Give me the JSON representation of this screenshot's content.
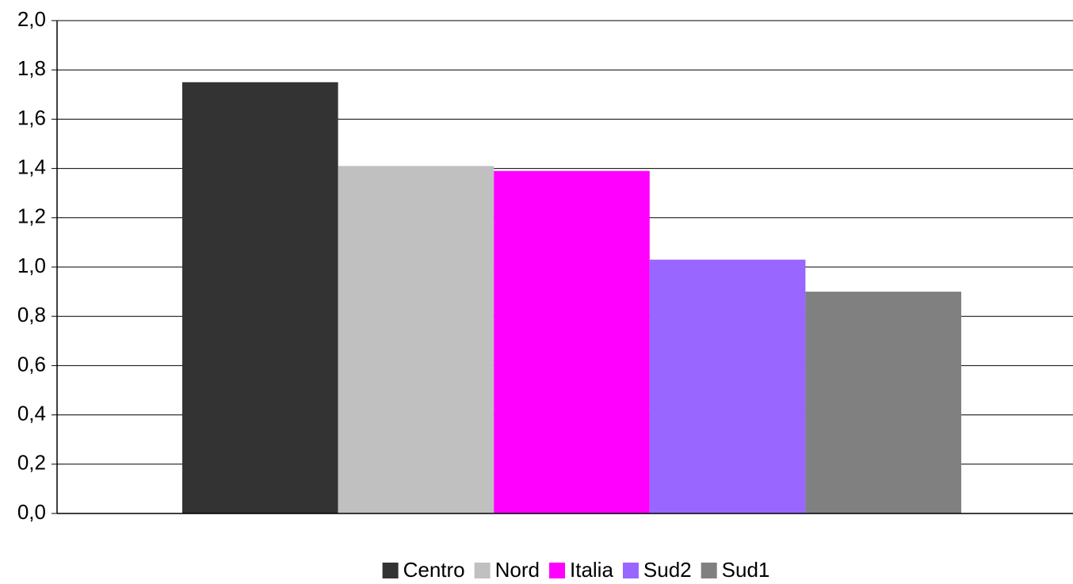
{
  "chart_data": {
    "type": "bar",
    "categories": [
      null
    ],
    "series": [
      {
        "name": "Centro",
        "color": "#333333",
        "values": [
          1.75
        ]
      },
      {
        "name": "Nord",
        "color": "#c0c0c0",
        "values": [
          1.41
        ]
      },
      {
        "name": "Italia",
        "color": "#ff00ff",
        "values": [
          1.39
        ]
      },
      {
        "name": "Sud2",
        "color": "#9966ff",
        "values": [
          1.03
        ]
      },
      {
        "name": "Sud1",
        "color": "#808080",
        "values": [
          0.9
        ]
      }
    ],
    "ylim": [
      0,
      2.0
    ],
    "yticks": [
      {
        "value": 0,
        "label": "0,0"
      },
      {
        "value": 0.2,
        "label": "0,2"
      },
      {
        "value": 0.4,
        "label": "0,4"
      },
      {
        "value": 0.6,
        "label": "0,6"
      },
      {
        "value": 0.8,
        "label": "0,8"
      },
      {
        "value": 1.0,
        "label": "1,0"
      },
      {
        "value": 1.2,
        "label": "1,2"
      },
      {
        "value": 1.4,
        "label": "1,4"
      },
      {
        "value": 1.6,
        "label": "1,6"
      },
      {
        "value": 1.8,
        "label": "1,8"
      },
      {
        "value": 2.0,
        "label": "2,0"
      }
    ],
    "grid": true,
    "legend": "bottom"
  }
}
